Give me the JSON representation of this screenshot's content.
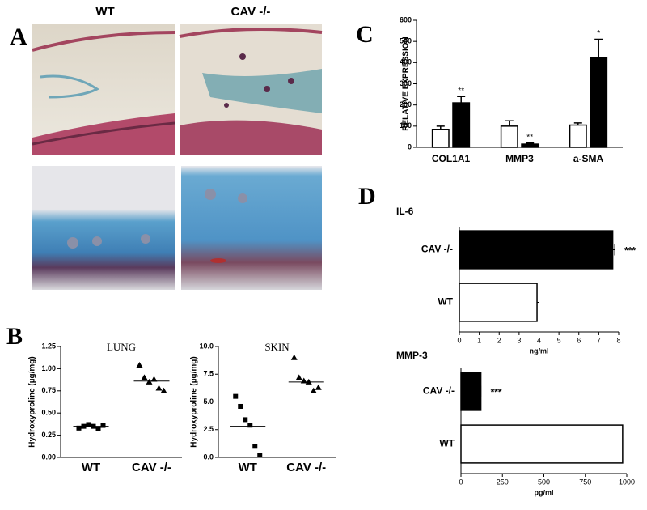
{
  "figure": {
    "panel_labels": [
      "A",
      "B",
      "C",
      "D"
    ],
    "column_labels": [
      "WT",
      "CAV -/-"
    ]
  },
  "chart_data": [
    {
      "type": "dot",
      "title": "LUNG",
      "y_label": "Hydroxyproline (µg/mg)",
      "categories": [
        "WT",
        "CAV -/-"
      ],
      "values": [
        [
          0.33,
          0.35,
          0.37,
          0.35,
          0.32,
          0.36
        ],
        [
          1.04,
          0.9,
          0.85,
          0.88,
          0.78,
          0.75
        ]
      ],
      "means": [
        0.35,
        0.86
      ],
      "markers": [
        "square",
        "triangle"
      ],
      "color": "#000000",
      "ylim": [
        0,
        1.25
      ],
      "yticks": [
        {
          "value": 0,
          "label": "0.00"
        },
        {
          "value": 0.25,
          "label": "0.25"
        },
        {
          "value": 0.5,
          "label": "0.50"
        },
        {
          "value": 0.75,
          "label": "0.75"
        },
        {
          "value": 1,
          "label": "1.00"
        },
        {
          "value": 1.25,
          "label": "1.25"
        }
      ]
    },
    {
      "type": "dot",
      "title": "SKIN",
      "y_label": "Hydroxyproline (µg/mg)",
      "categories": [
        "WT",
        "CAV -/-"
      ],
      "values": [
        [
          5.5,
          4.6,
          3.4,
          2.9,
          1.0,
          0.2
        ],
        [
          9.0,
          7.2,
          6.9,
          6.8,
          6.0,
          6.3
        ]
      ],
      "means": [
        2.8,
        6.8
      ],
      "markers": [
        "square",
        "triangle"
      ],
      "color": "#000000",
      "ylim": [
        0,
        10
      ],
      "yticks": [
        {
          "value": 0,
          "label": "0.0"
        },
        {
          "value": 2.5,
          "label": "2.5"
        },
        {
          "value": 5,
          "label": "5.0"
        },
        {
          "value": 7.5,
          "label": "7.5"
        },
        {
          "value": 10,
          "label": "10.0"
        }
      ]
    },
    {
      "type": "bar",
      "y_label": "RELATIVE EXPRESSION",
      "categories": [
        "COL1A1",
        "MMP3",
        "a-SMA"
      ],
      "series": [
        {
          "color": "#ffffff",
          "values": [
            85,
            100,
            105
          ],
          "errors": [
            15,
            25,
            10
          ]
        },
        {
          "color": "#000000",
          "values": [
            210,
            15,
            425
          ],
          "errors": [
            30,
            5,
            85
          ],
          "significance": [
            "**",
            "**",
            "*"
          ]
        }
      ],
      "ylim": [
        0,
        600
      ],
      "yticks": [
        0,
        100,
        200,
        300,
        400,
        500,
        600
      ]
    },
    {
      "type": "barh",
      "title": "IL-6",
      "x_label": "ng/ml",
      "categories": [
        "CAV -/-",
        "WT"
      ],
      "values": [
        7.7,
        3.9
      ],
      "errors": [
        0.1,
        0.1
      ],
      "colors": [
        "#000000",
        "#ffffff"
      ],
      "significance": [
        "***",
        null
      ],
      "xlim": [
        0,
        8
      ],
      "xticks": [
        0,
        1,
        2,
        3,
        4,
        5,
        6,
        7,
        8
      ]
    },
    {
      "type": "barh",
      "title": "MMP-3",
      "x_label": "pg/ml",
      "categories": [
        "CAV -/-",
        "WT"
      ],
      "values": [
        120,
        975
      ],
      "errors": [
        0,
        8
      ],
      "colors": [
        "#000000",
        "#ffffff"
      ],
      "significance": [
        "***",
        null
      ],
      "xlim": [
        0,
        1000
      ],
      "xticks": [
        0,
        250,
        500,
        750,
        1000
      ]
    }
  ]
}
